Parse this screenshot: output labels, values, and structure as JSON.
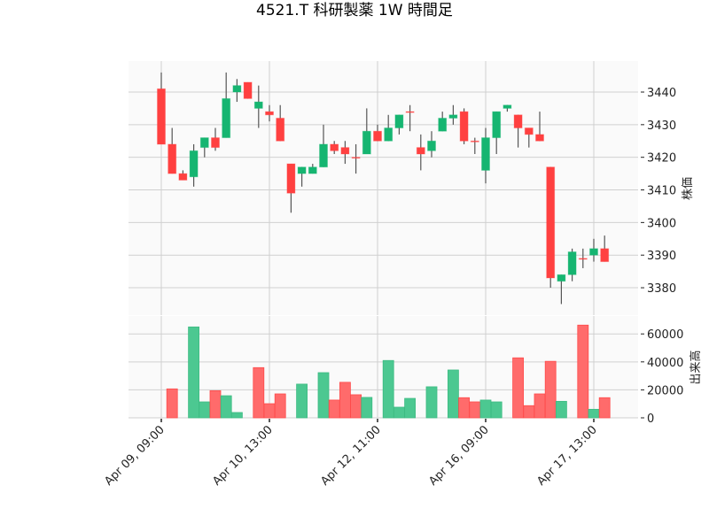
{
  "chart_data": {
    "type": "candlestick",
    "title": "4521.T 科研製薬 1W 時間足",
    "price_axis": {
      "label": "株価",
      "ticks": [
        3380,
        3390,
        3400,
        3410,
        3420,
        3430,
        3440
      ],
      "range": [
        3371.6,
        3449.5
      ],
      "position": "right"
    },
    "volume_axis": {
      "label": "出来高",
      "ticks": [
        0,
        20000,
        40000,
        60000
      ],
      "range": [
        0,
        72800
      ],
      "position": "right"
    },
    "x_ticks": [
      {
        "index": 0,
        "label": "Apr 09, 09:00"
      },
      {
        "index": 10,
        "label": "Apr 10, 13:00"
      },
      {
        "index": 20,
        "label": "Apr 12, 11:00"
      },
      {
        "index": 30,
        "label": "Apr 16, 09:00"
      },
      {
        "index": 40,
        "label": "Apr 17, 13:00"
      }
    ],
    "grid": true,
    "colors": {
      "up": "#16b571",
      "down": "#ff4040",
      "volume_up": "#4cc891",
      "volume_down": "#ff6b6b",
      "wick": "#555555",
      "background": "#fafafa",
      "grid": "#d0d0d0"
    },
    "ohlc": [
      [
        3441,
        3446,
        3424,
        3424
      ],
      [
        3424,
        3429,
        3415,
        3415
      ],
      [
        3415,
        3416,
        3413,
        3413
      ],
      [
        3414,
        3424,
        3411,
        3422
      ],
      [
        3423,
        3426,
        3420,
        3426
      ],
      [
        3426,
        3429,
        3422,
        3423
      ],
      [
        3426,
        3446,
        3426,
        3438
      ],
      [
        3440,
        3444,
        3437,
        3442
      ],
      [
        3443,
        3443,
        3438,
        3438
      ],
      [
        3435,
        3442,
        3429,
        3437
      ],
      [
        3434,
        3436,
        3431,
        3433
      ],
      [
        3432,
        3436,
        3425,
        3425
      ],
      [
        3418,
        3418,
        3403,
        3409
      ],
      [
        3415,
        3417,
        3411,
        3417
      ],
      [
        3415,
        3418,
        3415,
        3417
      ],
      [
        3417,
        3430,
        3417,
        3424
      ],
      [
        3424,
        3425,
        3421,
        3422
      ],
      [
        3423,
        3425,
        3418,
        3421
      ],
      [
        3420,
        3424,
        3415,
        3420
      ],
      [
        3421,
        3435,
        3421,
        3428
      ],
      [
        3428,
        3430,
        3425,
        3425
      ],
      [
        3425,
        3433,
        3425,
        3429
      ],
      [
        3429,
        3433,
        3427,
        3433
      ],
      [
        3434,
        3436,
        3428,
        3434
      ],
      [
        3423,
        3427,
        3416,
        3421
      ],
      [
        3422,
        3428,
        3420,
        3425
      ],
      [
        3428,
        3434,
        3428,
        3432
      ],
      [
        3432,
        3436,
        3430,
        3433
      ],
      [
        3434,
        3435,
        3424,
        3425
      ],
      [
        3425,
        3426,
        3421,
        3425
      ],
      [
        3416,
        3429,
        3412,
        3426
      ],
      [
        3426,
        3434,
        3421,
        3434
      ],
      [
        3435,
        3436,
        3434,
        3436
      ],
      [
        3433,
        3433,
        3423,
        3429
      ],
      [
        3429,
        3429,
        3423,
        3427
      ],
      [
        3427,
        3434,
        3425,
        3425
      ],
      [
        3417,
        3417,
        3380,
        3383
      ],
      [
        3382,
        3384,
        3375,
        3384
      ],
      [
        3384,
        3392,
        3382,
        3391
      ],
      [
        3389,
        3392,
        3386,
        3389
      ],
      [
        3390,
        3395,
        3388,
        3392
      ],
      [
        3392,
        3396,
        3388,
        3388
      ]
    ],
    "volume": [
      0,
      20700,
      0,
      65000,
      11400,
      19400,
      15800,
      3800,
      0,
      35900,
      10100,
      17100,
      0,
      24100,
      0,
      32300,
      12700,
      25400,
      16500,
      14600,
      0,
      41000,
      7600,
      13900,
      0,
      22200,
      0,
      34200,
      14400,
      11400,
      12700,
      11400,
      0,
      42900,
      8700,
      17100,
      40400,
      11800,
      0,
      66300,
      6100,
      14400
    ],
    "volume_direction": [
      "up",
      "down",
      "down",
      "up",
      "up",
      "down",
      "up",
      "up",
      "down",
      "down",
      "down",
      "down",
      "down",
      "up",
      "up",
      "up",
      "down",
      "down",
      "down",
      "up",
      "down",
      "up",
      "up",
      "up",
      "down",
      "up",
      "up",
      "up",
      "down",
      "down",
      "up",
      "up",
      "up",
      "down",
      "down",
      "down",
      "down",
      "up",
      "up",
      "down",
      "up",
      "down"
    ]
  }
}
